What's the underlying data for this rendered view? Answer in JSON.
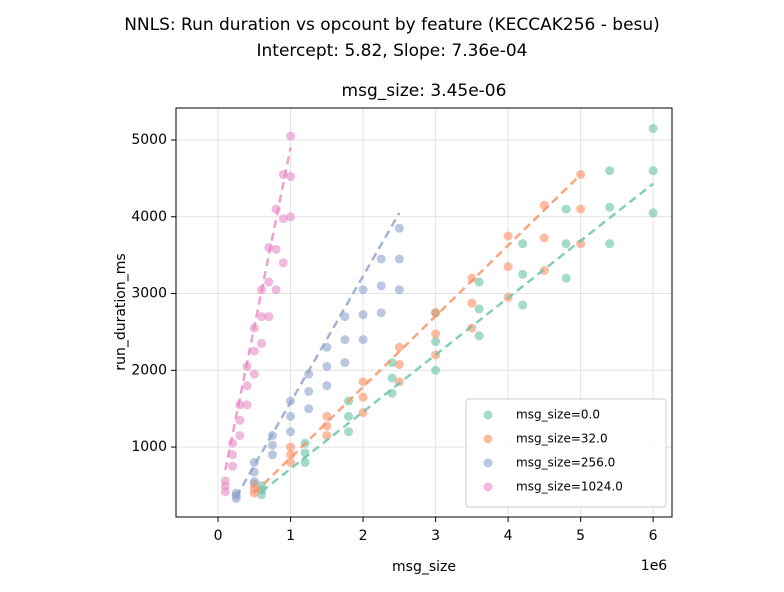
{
  "chart_data": {
    "type": "scatter",
    "title": "NNLS: Run duration vs opcount by feature (KECCAK256 - besu)",
    "subtitle": "Intercept: 5.82, Slope: 7.36e-04",
    "plot_title": "msg_size: 3.45e-06",
    "x_label": "msg_size",
    "y_label": "run_duration_ms",
    "x_offset_label": "1e6",
    "xlim": [
      -580000,
      6260000
    ],
    "ylim": [
      89,
      5417
    ],
    "xticks": [
      {
        "value": 0,
        "label": "0"
      },
      {
        "value": 1000000,
        "label": "1"
      },
      {
        "value": 2000000,
        "label": "2"
      },
      {
        "value": 3000000,
        "label": "3"
      },
      {
        "value": 4000000,
        "label": "4"
      },
      {
        "value": 5000000,
        "label": "5"
      },
      {
        "value": 6000000,
        "label": "6"
      }
    ],
    "yticks": [
      1000,
      2000,
      3000,
      4000,
      5000
    ],
    "grid": true,
    "legend": "lower right",
    "series": [
      {
        "name": "msg_size=0.0",
        "color": "#66c2a5",
        "x": [
          600000,
          600000,
          600000,
          1200000,
          1200000,
          1200000,
          1800000,
          1800000,
          1800000,
          2400000,
          2400000,
          2400000,
          3000000,
          3000000,
          3000000,
          3600000,
          3600000,
          3600000,
          4200000,
          4200000,
          4200000,
          4800000,
          4800000,
          4800000,
          5400000,
          5400000,
          5400000,
          6000000,
          6000000,
          6000000
        ],
        "values": [
          380,
          440,
          500,
          800,
          925,
          1050,
          1200,
          1400,
          1600,
          1700,
          1900,
          2100,
          2000,
          2375,
          2750,
          2450,
          2800,
          3150,
          2850,
          3250,
          3650,
          3200,
          3650,
          4100,
          3650,
          4125,
          4600,
          4050,
          4600,
          5150
        ],
        "fit": {
          "x": [
            600000,
            6000000
          ],
          "values": [
            420,
            4430
          ]
        }
      },
      {
        "name": "msg_size=32.0",
        "color": "#fc8d62",
        "x": [
          500000,
          500000,
          500000,
          1000000,
          1000000,
          1000000,
          1500000,
          1500000,
          1500000,
          2000000,
          2000000,
          2000000,
          2500000,
          2500000,
          2500000,
          3000000,
          3000000,
          3000000,
          3500000,
          3500000,
          3500000,
          4000000,
          4000000,
          4000000,
          4500000,
          4500000,
          4500000,
          5000000,
          5000000,
          5000000
        ],
        "values": [
          400,
          460,
          520,
          800,
          900,
          1000,
          1150,
          1275,
          1400,
          1450,
          1650,
          1850,
          1850,
          2075,
          2300,
          2200,
          2475,
          2750,
          2550,
          2875,
          3200,
          2950,
          3350,
          3750,
          3300,
          3725,
          4150,
          3650,
          4100,
          4550
        ],
        "fit": {
          "x": [
            500000,
            5000000
          ],
          "values": [
            400,
            4550
          ]
        }
      },
      {
        "name": "msg_size=256.0",
        "color": "#8da0cb",
        "x": [
          250000,
          250000,
          250000,
          500000,
          500000,
          500000,
          750000,
          750000,
          750000,
          1000000,
          1000000,
          1000000,
          1250000,
          1250000,
          1250000,
          1500000,
          1500000,
          1500000,
          1750000,
          1750000,
          1750000,
          2000000,
          2000000,
          2000000,
          2250000,
          2250000,
          2250000,
          2500000,
          2500000,
          2500000
        ],
        "values": [
          330,
          365,
          400,
          550,
          675,
          800,
          900,
          1025,
          1150,
          1200,
          1400,
          1600,
          1500,
          1725,
          1950,
          1800,
          2050,
          2300,
          2100,
          2400,
          2700,
          2400,
          2725,
          3050,
          2750,
          3100,
          3450,
          3050,
          3450,
          3850
        ],
        "fit": {
          "x": [
            250000,
            2500000
          ],
          "values": [
            350,
            4050
          ]
        }
      },
      {
        "name": "msg_size=1024.0",
        "color": "#e78ac3",
        "x": [
          100000,
          100000,
          100000,
          200000,
          200000,
          200000,
          300000,
          300000,
          300000,
          400000,
          400000,
          400000,
          500000,
          500000,
          500000,
          600000,
          600000,
          600000,
          700000,
          700000,
          700000,
          800000,
          800000,
          800000,
          900000,
          900000,
          900000,
          1000000,
          1000000,
          1000000
        ],
        "values": [
          420,
          490,
          560,
          750,
          900,
          1050,
          1150,
          1350,
          1550,
          1550,
          1800,
          2050,
          1950,
          2250,
          2550,
          2350,
          2700,
          3050,
          2700,
          3150,
          3600,
          3050,
          3575,
          4100,
          3400,
          3975,
          4550,
          4000,
          4525,
          5050
        ],
        "fit": {
          "x": [
            100000,
            1000000
          ],
          "values": [
            700,
            4900
          ]
        }
      }
    ]
  }
}
